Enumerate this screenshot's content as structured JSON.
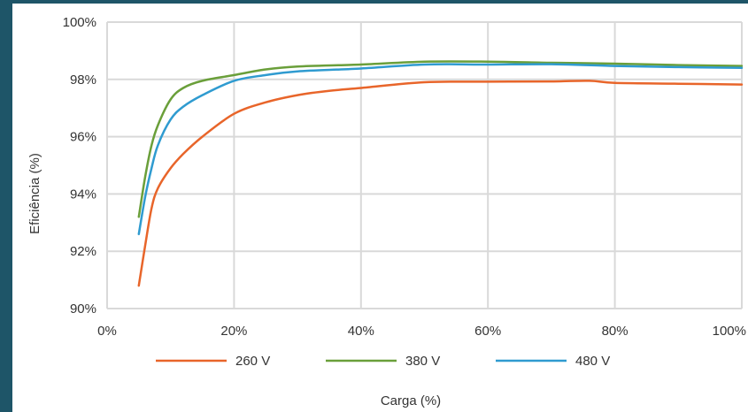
{
  "chart_data": {
    "type": "line",
    "title": "",
    "xlabel": "Carga (%)",
    "ylabel": "Eficiência (%)",
    "xlim": [
      0,
      100
    ],
    "ylim": [
      90,
      100
    ],
    "x_ticks": [
      0,
      20,
      40,
      60,
      80,
      100
    ],
    "x_tick_labels": [
      "0%",
      "20%",
      "40%",
      "60%",
      "80%",
      "100%"
    ],
    "y_ticks": [
      90,
      92,
      94,
      96,
      98,
      100
    ],
    "y_tick_labels": [
      "90%",
      "92%",
      "94%",
      "96%",
      "98%",
      "100%"
    ],
    "grid": true,
    "legend_position": "bottom",
    "series": [
      {
        "name": "260 V",
        "color": "#e8652a",
        "points": [
          [
            5,
            90.8
          ],
          [
            6,
            92.2
          ],
          [
            7,
            93.5
          ],
          [
            8,
            94.2
          ],
          [
            10,
            94.9
          ],
          [
            12,
            95.4
          ],
          [
            15,
            96.0
          ],
          [
            20,
            96.8
          ],
          [
            25,
            97.2
          ],
          [
            30,
            97.45
          ],
          [
            35,
            97.6
          ],
          [
            40,
            97.7
          ],
          [
            50,
            97.9
          ],
          [
            60,
            97.92
          ],
          [
            70,
            97.93
          ],
          [
            76,
            97.95
          ],
          [
            80,
            97.88
          ],
          [
            90,
            97.85
          ],
          [
            100,
            97.82
          ]
        ]
      },
      {
        "name": "380 V",
        "color": "#6a9f3a",
        "points": [
          [
            5,
            93.2
          ],
          [
            6,
            94.6
          ],
          [
            7,
            95.7
          ],
          [
            8,
            96.4
          ],
          [
            10,
            97.3
          ],
          [
            12,
            97.7
          ],
          [
            15,
            97.95
          ],
          [
            20,
            98.15
          ],
          [
            25,
            98.35
          ],
          [
            30,
            98.45
          ],
          [
            40,
            98.52
          ],
          [
            50,
            98.62
          ],
          [
            60,
            98.62
          ],
          [
            70,
            98.58
          ],
          [
            80,
            98.55
          ],
          [
            90,
            98.5
          ],
          [
            100,
            98.47
          ]
        ]
      },
      {
        "name": "480 V",
        "color": "#2f9bd0",
        "points": [
          [
            5,
            92.6
          ],
          [
            6,
            93.9
          ],
          [
            7,
            94.9
          ],
          [
            8,
            95.7
          ],
          [
            10,
            96.6
          ],
          [
            12,
            97.05
          ],
          [
            15,
            97.45
          ],
          [
            20,
            97.95
          ],
          [
            25,
            98.15
          ],
          [
            30,
            98.28
          ],
          [
            40,
            98.38
          ],
          [
            50,
            98.52
          ],
          [
            60,
            98.52
          ],
          [
            70,
            98.53
          ],
          [
            80,
            98.47
          ],
          [
            90,
            98.43
          ],
          [
            100,
            98.4
          ]
        ]
      }
    ]
  },
  "colors": {
    "background": "#1e5568",
    "grid": "#d9d9d9"
  }
}
